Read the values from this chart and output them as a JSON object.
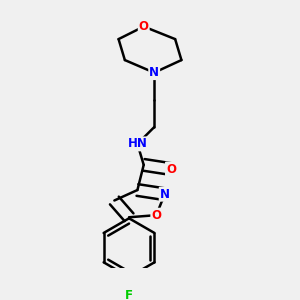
{
  "bg_color": "#f0f0f0",
  "atom_colors": {
    "C": "#000000",
    "N": "#0000ff",
    "O": "#ff0000",
    "F": "#00cc00",
    "H": "#555555"
  },
  "bond_color": "#000000",
  "bond_width": 1.8,
  "figsize": [
    3.0,
    3.0
  ],
  "dpi": 100
}
